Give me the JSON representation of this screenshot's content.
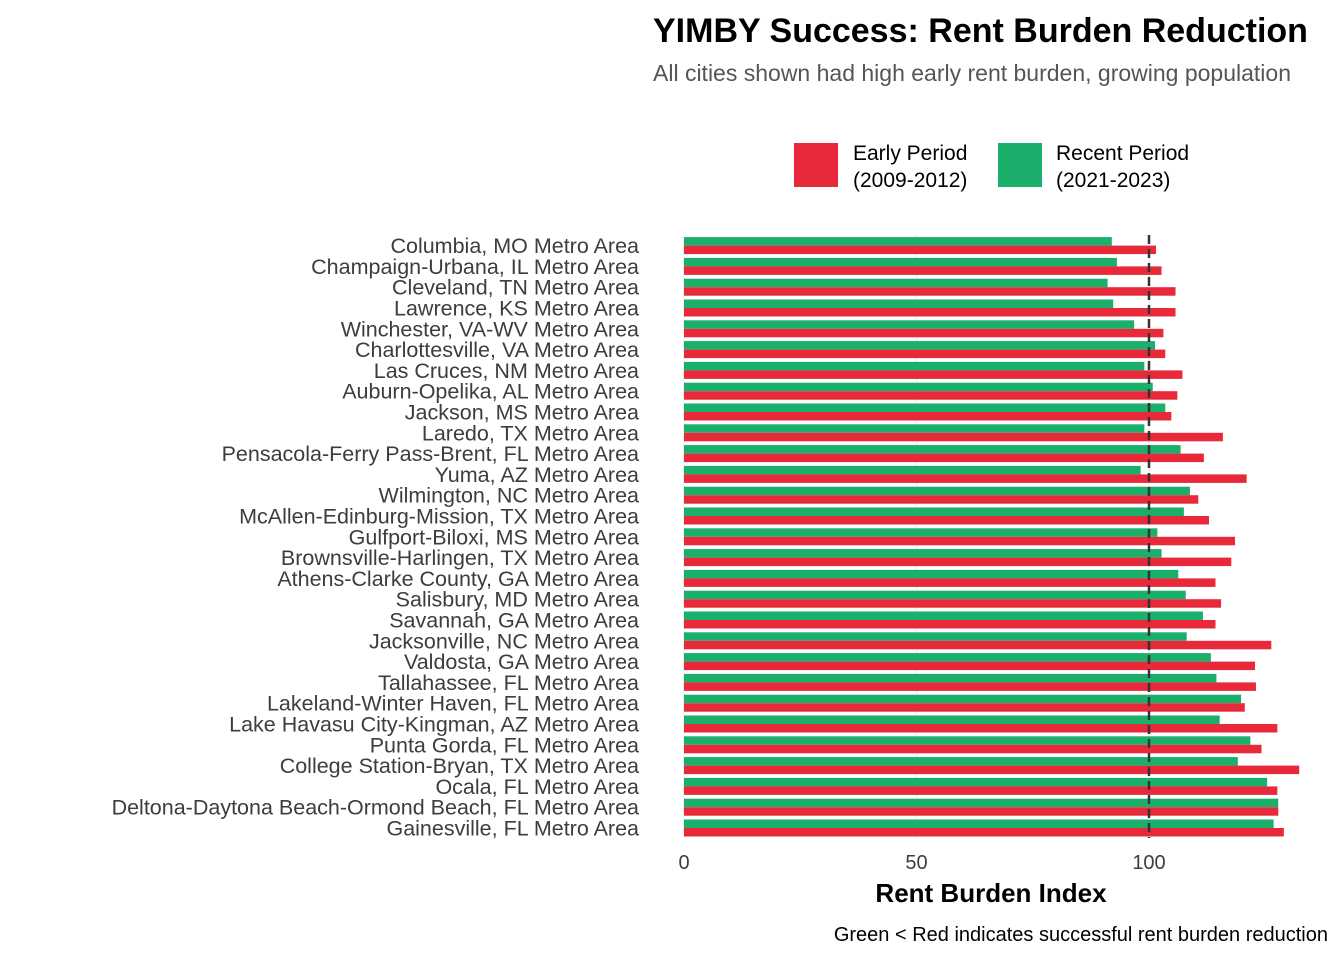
{
  "chart_data": {
    "type": "bar",
    "orientation": "horizontal",
    "title": "YIMBY Success: Rent Burden Reduction",
    "subtitle": "All cities shown had high early rent burden, growing population",
    "xlabel": "Rent Burden Index",
    "caption": "Green < Red indicates successful rent burden reduction",
    "xlim": [
      0,
      132
    ],
    "xticks": [
      0,
      50,
      100
    ],
    "reference_line": 100,
    "grid": true,
    "legend_position": "top",
    "categories": [
      "Columbia, MO Metro Area",
      "Champaign-Urbana, IL Metro Area",
      "Cleveland, TN Metro Area",
      "Lawrence, KS Metro Area",
      "Winchester, VA-WV Metro Area",
      "Charlottesville, VA Metro Area",
      "Las Cruces, NM Metro Area",
      "Auburn-Opelika, AL Metro Area",
      "Jackson, MS Metro Area",
      "Laredo, TX Metro Area",
      "Pensacola-Ferry Pass-Brent, FL Metro Area",
      "Yuma, AZ Metro Area",
      "Wilmington, NC Metro Area",
      "McAllen-Edinburg-Mission, TX Metro Area",
      "Gulfport-Biloxi, MS Metro Area",
      "Brownsville-Harlingen, TX Metro Area",
      "Athens-Clarke County, GA Metro Area",
      "Salisbury, MD Metro Area",
      "Savannah, GA Metro Area",
      "Jacksonville, NC Metro Area",
      "Valdosta, GA Metro Area",
      "Tallahassee, FL Metro Area",
      "Lakeland-Winter Haven, FL Metro Area",
      "Lake Havasu City-Kingman, AZ Metro Area",
      "Punta Gorda, FL Metro Area",
      "College Station-Bryan, TX Metro Area",
      "Ocala, FL Metro Area",
      "Deltona-Daytona Beach-Ormond Beach, FL Metro Area",
      "Gainesville, FL Metro Area"
    ],
    "series": [
      {
        "name": "Early Period (2009-2012)",
        "legend_lines": [
          "Early Period",
          "(2009-2012)"
        ],
        "color": "#E8293A",
        "values": [
          101.5,
          102.7,
          105.7,
          105.7,
          103.1,
          103.5,
          107.2,
          106.1,
          104.8,
          115.9,
          111.8,
          121.0,
          110.6,
          112.9,
          118.5,
          117.7,
          114.3,
          115.5,
          114.3,
          126.3,
          122.8,
          123.0,
          120.6,
          127.6,
          124.2,
          132.3,
          127.6,
          127.8,
          129.0
        ]
      },
      {
        "name": "Recent Period (2021-2023)",
        "legend_lines": [
          "Recent Period",
          "(2021-2023)"
        ],
        "color": "#1BAF6C",
        "values": [
          92.0,
          93.1,
          91.1,
          92.3,
          96.8,
          101.3,
          99.0,
          100.8,
          103.5,
          99.0,
          106.8,
          98.2,
          108.8,
          107.5,
          101.8,
          102.7,
          106.3,
          107.9,
          111.6,
          108.1,
          113.3,
          114.5,
          119.8,
          115.2,
          121.8,
          119.1,
          125.4,
          127.8,
          126.8
        ]
      }
    ]
  }
}
